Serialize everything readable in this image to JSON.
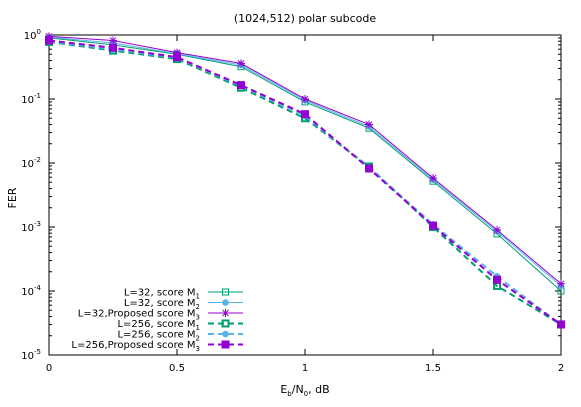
{
  "chart_data": {
    "type": "line",
    "title": "(1024,512) polar subcode",
    "xlabel": {
      "main": "E",
      "sub1": "b",
      "mid": "/N",
      "sub2": "0",
      "tail": ", dB"
    },
    "ylabel": "FER",
    "xlim": [
      0,
      2
    ],
    "ylim": [
      1e-05,
      1
    ],
    "yscale": "log",
    "grid": false,
    "legend_position": "bottom-left",
    "x_ticks": [
      "0",
      "0.5",
      "1",
      "1.5",
      "2"
    ],
    "y_ticks": [
      {
        "value": 1,
        "base": "10",
        "exp": "0"
      },
      {
        "value": 0.1,
        "base": "10",
        "exp": "-1"
      },
      {
        "value": 0.01,
        "base": "10",
        "exp": "-2"
      },
      {
        "value": 0.001,
        "base": "10",
        "exp": "-3"
      },
      {
        "value": 0.0001,
        "base": "10",
        "exp": "-4"
      },
      {
        "value": 1e-05,
        "base": "10",
        "exp": "-5"
      }
    ],
    "x": [
      0,
      0.25,
      0.5,
      0.75,
      1,
      1.25,
      1.5,
      1.75,
      2
    ],
    "series": [
      {
        "name": "L=32, score M",
        "sub": "1",
        "color": "#009e73",
        "marker": "square-open",
        "dash": false,
        "thick": false,
        "values": [
          0.9,
          0.7,
          0.5,
          0.32,
          0.09,
          0.035,
          0.0052,
          0.00078,
          0.0001
        ]
      },
      {
        "name": "L=32, score M",
        "sub": "2",
        "color": "#56b4e9",
        "marker": "circle-filled",
        "dash": false,
        "thick": false,
        "values": [
          0.92,
          0.75,
          0.51,
          0.34,
          0.095,
          0.037,
          0.0055,
          0.00085,
          0.00012
        ]
      },
      {
        "name": "L=32,Proposed score M",
        "sub": "3",
        "color": "#9400d3",
        "marker": "star",
        "dash": false,
        "thick": false,
        "values": [
          0.95,
          0.82,
          0.53,
          0.36,
          0.1,
          0.04,
          0.0058,
          0.0009,
          0.00013
        ]
      },
      {
        "name": "L=256, score M",
        "sub": "1",
        "color": "#009e73",
        "marker": "square-open",
        "dash": true,
        "thick": true,
        "values": [
          0.78,
          0.57,
          0.42,
          0.15,
          0.05,
          0.0088,
          0.001,
          0.00012,
          3e-05
        ]
      },
      {
        "name": "L=256, score M",
        "sub": "2",
        "color": "#56b4e9",
        "marker": "circle-filled",
        "dash": true,
        "thick": true,
        "values": [
          0.8,
          0.6,
          0.44,
          0.16,
          0.055,
          0.0085,
          0.0011,
          0.00017,
          3e-05
        ]
      },
      {
        "name": "L=256,Proposed score M",
        "sub": "3",
        "color": "#9400d3",
        "marker": "square-filled",
        "dash": true,
        "thick": true,
        "values": [
          0.82,
          0.63,
          0.45,
          0.165,
          0.058,
          0.0082,
          0.00105,
          0.00015,
          3e-05
        ]
      }
    ]
  }
}
